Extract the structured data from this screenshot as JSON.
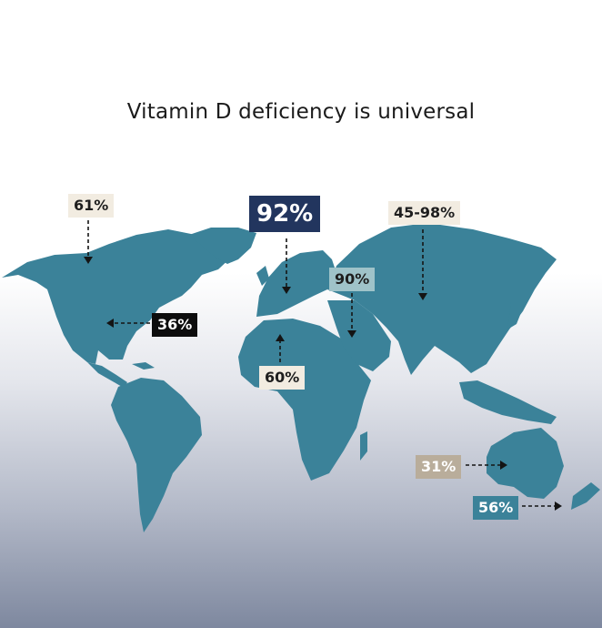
{
  "title": "Vitamin D deficiency is universal",
  "colors": {
    "land": "#3b8299",
    "navy": "#22355e",
    "cream": "#f2ece1",
    "black": "#0d0d0d",
    "tan": "#b9ad9b",
    "teal_light": "#9fc3c9"
  },
  "markers": {
    "canada": "61%",
    "europe": "92%",
    "russia": "45-98%",
    "usa": "36%",
    "middle_east": "90%",
    "africa": "60%",
    "australia": "31%",
    "new_zealand": "56%"
  }
}
